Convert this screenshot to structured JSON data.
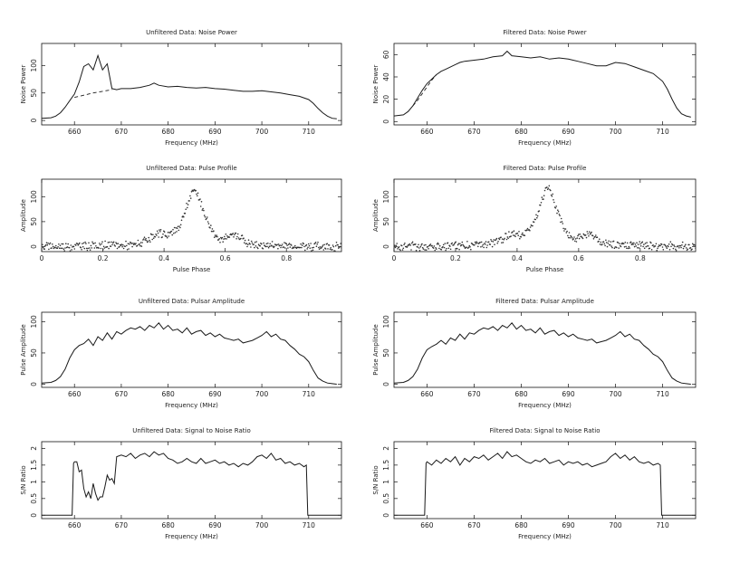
{
  "chart_data": [
    {
      "id": "p1",
      "type": "line",
      "title": "Unfiltered Data: Noise Power",
      "xlabel": "Frequency (MHz)",
      "ylabel": "Noise Power",
      "xlim": [
        653,
        717
      ],
      "ylim": [
        -8,
        140
      ],
      "xticks": [
        660,
        670,
        680,
        690,
        700,
        710
      ],
      "yticks": [
        0,
        50,
        100
      ],
      "series": [
        {
          "style": "solid",
          "x": [
            653,
            655,
            656,
            657,
            658,
            659,
            660,
            661,
            662,
            663,
            664,
            665,
            666,
            667,
            668,
            669,
            670,
            672,
            674,
            676,
            677,
            678,
            680,
            682,
            684,
            686,
            688,
            690,
            692,
            694,
            696,
            698,
            700,
            702,
            704,
            706,
            708,
            710,
            711,
            712,
            713,
            714,
            715,
            716
          ],
          "y": [
            4,
            5,
            8,
            14,
            24,
            36,
            48,
            70,
            98,
            103,
            92,
            118,
            92,
            103,
            58,
            56,
            58,
            58,
            60,
            64,
            68,
            64,
            61,
            62,
            60,
            59,
            60,
            58,
            57,
            55,
            53,
            53,
            54,
            52,
            50,
            47,
            44,
            38,
            31,
            22,
            14,
            8,
            4,
            3
          ]
        },
        {
          "style": "dashed",
          "x": [
            660,
            662,
            664,
            666,
            668
          ],
          "y": [
            42,
            46,
            50,
            53,
            56
          ]
        }
      ]
    },
    {
      "id": "p2",
      "type": "line",
      "title": "Filtered Data: Noise Power",
      "xlabel": "Frequency (MHz)",
      "ylabel": "Noise Power",
      "xlim": [
        653,
        717
      ],
      "ylim": [
        -3,
        70
      ],
      "xticks": [
        660,
        670,
        680,
        690,
        700,
        710
      ],
      "yticks": [
        0,
        20,
        40,
        60
      ],
      "series": [
        {
          "style": "solid",
          "x": [
            653,
            655,
            656,
            657,
            658,
            659,
            660,
            661,
            662,
            663,
            664,
            665,
            666,
            667,
            668,
            670,
            672,
            674,
            676,
            677,
            678,
            680,
            682,
            684,
            686,
            688,
            690,
            692,
            694,
            696,
            698,
            700,
            702,
            704,
            706,
            708,
            710,
            711,
            712,
            713,
            714,
            715,
            716
          ],
          "y": [
            5,
            6,
            9,
            14,
            21,
            28,
            34,
            38,
            42,
            45,
            47,
            49,
            51,
            53,
            54,
            55,
            56,
            58,
            59,
            63,
            59,
            58,
            57,
            58,
            56,
            57,
            56,
            54,
            52,
            50,
            50,
            53,
            52,
            49,
            46,
            43,
            36,
            29,
            20,
            12,
            7,
            5,
            4
          ]
        },
        {
          "style": "dashed",
          "x": [
            657,
            658,
            659,
            660,
            661,
            662
          ],
          "y": [
            14,
            19,
            25,
            31,
            37,
            42
          ]
        }
      ]
    },
    {
      "id": "p3",
      "type": "scatter",
      "title": "Unfiltered Data: Pulse Profile",
      "xlabel": "Pulse Phase",
      "ylabel": "Amplitude",
      "xlim": [
        0,
        0.98
      ],
      "ylim": [
        -10,
        135
      ],
      "xticks": [
        0,
        0.2,
        0.4,
        0.6,
        0.8
      ],
      "yticks": [
        0,
        50,
        100
      ],
      "profile": {
        "phase": [
          0,
          0.3,
          0.34,
          0.37,
          0.39,
          0.41,
          0.43,
          0.45,
          0.47,
          0.49,
          0.5,
          0.51,
          0.53,
          0.55,
          0.57,
          0.59,
          0.61,
          0.63,
          0.65,
          0.67,
          0.7,
          0.98
        ],
        "amplitude": [
          0,
          3,
          10,
          20,
          26,
          24,
          28,
          40,
          72,
          105,
          115,
          105,
          70,
          40,
          22,
          15,
          18,
          24,
          20,
          8,
          3,
          0
        ]
      }
    },
    {
      "id": "p4",
      "type": "scatter",
      "title": "Filtered Data: Pulse Profile",
      "xlabel": "Pulse Phase",
      "ylabel": "Amplitude",
      "xlim": [
        0,
        0.98
      ],
      "ylim": [
        -10,
        135
      ],
      "xticks": [
        0,
        0.2,
        0.4,
        0.6,
        0.8
      ],
      "yticks": [
        0,
        50,
        100
      ],
      "profile": {
        "phase": [
          0,
          0.3,
          0.34,
          0.37,
          0.39,
          0.41,
          0.43,
          0.45,
          0.47,
          0.49,
          0.5,
          0.51,
          0.53,
          0.55,
          0.57,
          0.59,
          0.61,
          0.63,
          0.65,
          0.67,
          0.7,
          0.98
        ],
        "amplitude": [
          0,
          3,
          11,
          21,
          27,
          25,
          29,
          41,
          74,
          106,
          117,
          106,
          72,
          41,
          22,
          15,
          18,
          24,
          20,
          8,
          3,
          0
        ]
      }
    },
    {
      "id": "p5",
      "type": "line",
      "title": "Unfiltered Data: Pulsar Amplitude",
      "xlabel": "Frequency (MHz)",
      "ylabel": "Pulse Amplitude",
      "xlim": [
        653,
        717
      ],
      "ylim": [
        -5,
        115
      ],
      "xticks": [
        660,
        670,
        680,
        690,
        700,
        710
      ],
      "yticks": [
        0,
        50,
        100
      ],
      "series": [
        {
          "style": "solid",
          "x": [
            653,
            655,
            656,
            657,
            658,
            659,
            660,
            661,
            662,
            663,
            664,
            665,
            666,
            667,
            668,
            669,
            670,
            671,
            672,
            673,
            674,
            675,
            676,
            677,
            678,
            679,
            680,
            681,
            682,
            683,
            684,
            685,
            686,
            687,
            688,
            689,
            690,
            691,
            692,
            693,
            694,
            695,
            696,
            697,
            698,
            699,
            700,
            701,
            702,
            703,
            704,
            705,
            706,
            707,
            708,
            709,
            710,
            711,
            712,
            713,
            714,
            715,
            716
          ],
          "y": [
            2,
            3,
            6,
            12,
            24,
            42,
            55,
            62,
            65,
            72,
            62,
            76,
            70,
            82,
            72,
            84,
            80,
            86,
            90,
            88,
            92,
            86,
            94,
            90,
            98,
            88,
            94,
            86,
            88,
            82,
            90,
            80,
            84,
            86,
            78,
            82,
            76,
            80,
            74,
            72,
            70,
            72,
            66,
            68,
            70,
            74,
            78,
            84,
            76,
            80,
            72,
            70,
            62,
            56,
            48,
            44,
            36,
            22,
            10,
            5,
            2,
            1,
            0
          ]
        }
      ]
    },
    {
      "id": "p6",
      "type": "line",
      "title": "Filtered Data: Pulsar Amplitude",
      "xlabel": "Frequency (MHz)",
      "ylabel": "Pulse Amplitude",
      "xlim": [
        653,
        717
      ],
      "ylim": [
        -5,
        115
      ],
      "xticks": [
        660,
        670,
        680,
        690,
        700,
        710
      ],
      "yticks": [
        0,
        50,
        100
      ],
      "series": [
        {
          "style": "solid",
          "x": [
            653,
            655,
            656,
            657,
            658,
            659,
            660,
            661,
            662,
            663,
            664,
            665,
            666,
            667,
            668,
            669,
            670,
            671,
            672,
            673,
            674,
            675,
            676,
            677,
            678,
            679,
            680,
            681,
            682,
            683,
            684,
            685,
            686,
            687,
            688,
            689,
            690,
            691,
            692,
            693,
            694,
            695,
            696,
            697,
            698,
            699,
            700,
            701,
            702,
            703,
            704,
            705,
            706,
            707,
            708,
            709,
            710,
            711,
            712,
            713,
            714,
            715,
            716
          ],
          "y": [
            2,
            3,
            6,
            12,
            24,
            42,
            55,
            60,
            64,
            70,
            64,
            74,
            70,
            80,
            72,
            82,
            80,
            86,
            90,
            88,
            92,
            86,
            94,
            90,
            98,
            88,
            94,
            86,
            88,
            82,
            90,
            80,
            84,
            86,
            78,
            82,
            76,
            80,
            74,
            72,
            70,
            72,
            66,
            68,
            70,
            74,
            78,
            84,
            76,
            80,
            72,
            70,
            62,
            56,
            48,
            44,
            36,
            22,
            10,
            5,
            2,
            1,
            0
          ]
        }
      ]
    },
    {
      "id": "p7",
      "type": "line",
      "title": "Unfiltered Data: Signal to Noise Ratio",
      "xlabel": "Frequency (MHz)",
      "ylabel": "S/N Ratio",
      "xlim": [
        653,
        717
      ],
      "ylim": [
        -0.1,
        2.2
      ],
      "xticks": [
        660,
        670,
        680,
        690,
        700,
        710
      ],
      "yticks": [
        0,
        0.5,
        1,
        1.5,
        2
      ],
      "series": [
        {
          "style": "solid",
          "x": [
            653,
            659.5,
            659.8,
            660,
            660.5,
            661,
            661.5,
            662,
            662.5,
            663,
            663.5,
            664,
            664.5,
            665,
            665.5,
            666,
            666.5,
            667,
            667.5,
            668,
            668.5,
            669,
            670,
            671,
            672,
            673,
            674,
            675,
            676,
            677,
            678,
            679,
            680,
            681,
            682,
            683,
            684,
            685,
            686,
            687,
            688,
            689,
            690,
            691,
            692,
            693,
            694,
            695,
            696,
            697,
            698,
            699,
            700,
            701,
            702,
            703,
            704,
            705,
            706,
            707,
            708,
            709,
            709.5,
            709.8,
            717
          ],
          "y": [
            0,
            0,
            1.55,
            1.6,
            1.6,
            1.3,
            1.35,
            0.8,
            0.55,
            0.7,
            0.5,
            0.95,
            0.65,
            0.45,
            0.55,
            0.55,
            0.85,
            1.2,
            1.05,
            1.1,
            0.95,
            1.75,
            1.8,
            1.75,
            1.85,
            1.7,
            1.8,
            1.85,
            1.75,
            1.9,
            1.8,
            1.85,
            1.7,
            1.65,
            1.55,
            1.6,
            1.7,
            1.6,
            1.55,
            1.7,
            1.55,
            1.6,
            1.65,
            1.55,
            1.6,
            1.5,
            1.55,
            1.45,
            1.55,
            1.5,
            1.6,
            1.75,
            1.8,
            1.7,
            1.85,
            1.65,
            1.7,
            1.55,
            1.6,
            1.5,
            1.55,
            1.45,
            1.5,
            0,
            0
          ]
        }
      ]
    },
    {
      "id": "p8",
      "type": "line",
      "title": "Filtered Data: Signal to Noise Ratio",
      "xlabel": "Frequency (MHz)",
      "ylabel": "S/N Ratio",
      "xlim": [
        653,
        717
      ],
      "ylim": [
        -0.1,
        2.2
      ],
      "xticks": [
        660,
        670,
        680,
        690,
        700,
        710
      ],
      "yticks": [
        0,
        0.5,
        1,
        1.5,
        2
      ],
      "series": [
        {
          "style": "solid",
          "x": [
            653,
            659.5,
            659.8,
            660,
            661,
            662,
            663,
            664,
            665,
            666,
            667,
            668,
            669,
            670,
            671,
            672,
            673,
            674,
            675,
            676,
            677,
            678,
            679,
            680,
            681,
            682,
            683,
            684,
            685,
            686,
            687,
            688,
            689,
            690,
            691,
            692,
            693,
            694,
            695,
            696,
            697,
            698,
            699,
            700,
            701,
            702,
            703,
            704,
            705,
            706,
            707,
            708,
            709,
            709.5,
            709.8,
            717
          ],
          "y": [
            0,
            0,
            1.55,
            1.6,
            1.5,
            1.65,
            1.55,
            1.7,
            1.6,
            1.75,
            1.5,
            1.7,
            1.6,
            1.75,
            1.7,
            1.8,
            1.65,
            1.75,
            1.85,
            1.7,
            1.9,
            1.75,
            1.8,
            1.7,
            1.6,
            1.55,
            1.65,
            1.6,
            1.7,
            1.55,
            1.6,
            1.65,
            1.5,
            1.6,
            1.55,
            1.6,
            1.5,
            1.55,
            1.45,
            1.5,
            1.55,
            1.6,
            1.75,
            1.85,
            1.7,
            1.8,
            1.65,
            1.75,
            1.6,
            1.55,
            1.6,
            1.5,
            1.55,
            1.5,
            0,
            0
          ]
        }
      ]
    }
  ]
}
